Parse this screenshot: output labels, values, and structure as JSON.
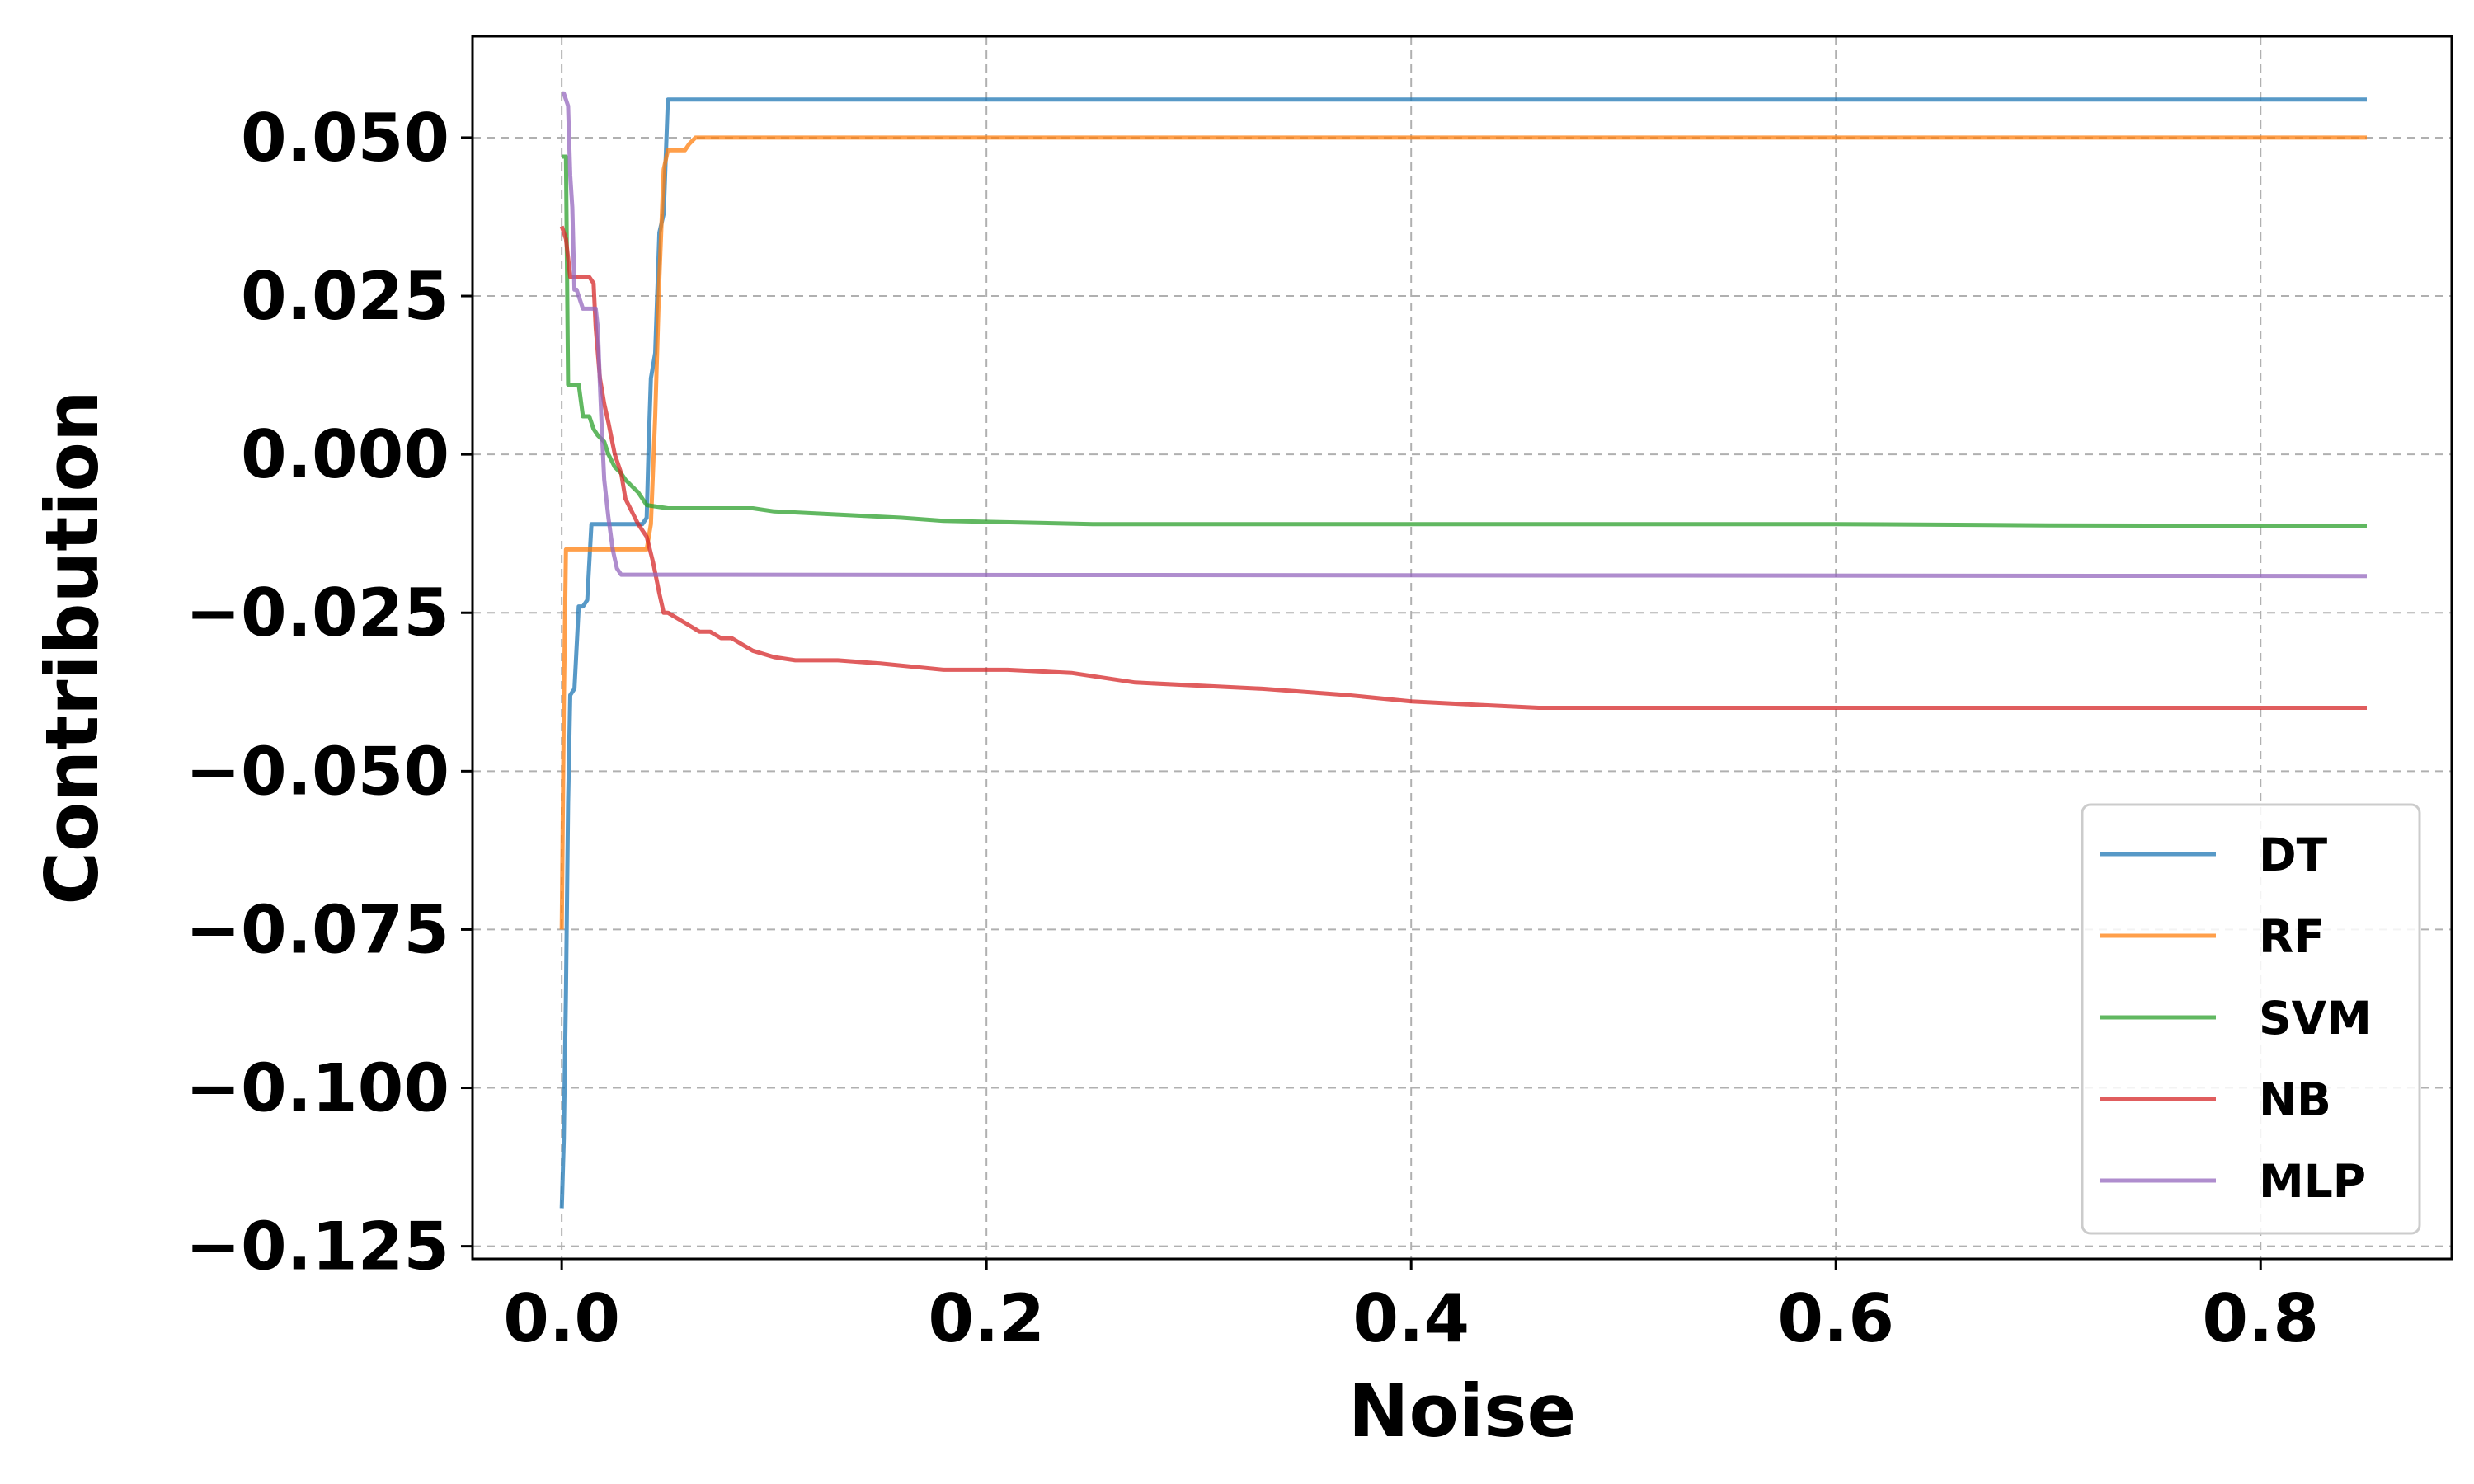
{
  "chart_data": {
    "type": "line",
    "title": "",
    "xlabel": "Noise",
    "ylabel": "Contribution",
    "xlim": [
      -0.042,
      0.89
    ],
    "ylim": [
      -0.127,
      0.066
    ],
    "xticks": [
      0.0,
      0.2,
      0.4,
      0.6,
      0.8
    ],
    "xtick_labels": [
      "0.0",
      "0.2",
      "0.4",
      "0.6",
      "0.8"
    ],
    "yticks": [
      0.05,
      0.025,
      0.0,
      -0.025,
      -0.05,
      -0.075,
      -0.1,
      -0.125
    ],
    "ytick_labels": [
      "0.050",
      "0.025",
      "0.000",
      "−0.025",
      "−0.050",
      "−0.075",
      "−0.100",
      "−0.125"
    ],
    "grid": true,
    "legend_position": "bottom-right",
    "series": [
      {
        "name": "DT",
        "color": "#1f77b4",
        "x": [
          0.0,
          0.001,
          0.002,
          0.003,
          0.004,
          0.006,
          0.008,
          0.01,
          0.012,
          0.014,
          0.016,
          0.018,
          0.02,
          0.025,
          0.03,
          0.035,
          0.038,
          0.04,
          0.041,
          0.042,
          0.044,
          0.046,
          0.048,
          0.05,
          0.85
        ],
        "y": [
          -0.119,
          -0.108,
          -0.085,
          -0.055,
          -0.038,
          -0.037,
          -0.024,
          -0.024,
          -0.023,
          -0.011,
          -0.011,
          -0.011,
          -0.011,
          -0.011,
          -0.011,
          -0.011,
          -0.011,
          -0.01,
          0.002,
          0.012,
          0.016,
          0.035,
          0.038,
          0.056,
          0.056
        ]
      },
      {
        "name": "RF",
        "color": "#ff7f0e",
        "x": [
          0.0,
          0.001,
          0.002,
          0.003,
          0.005,
          0.01,
          0.02,
          0.03,
          0.04,
          0.042,
          0.044,
          0.046,
          0.048,
          0.05,
          0.052,
          0.056,
          0.058,
          0.06,
          0.063,
          0.07,
          0.85
        ],
        "y": [
          -0.075,
          -0.04,
          -0.015,
          -0.015,
          -0.015,
          -0.015,
          -0.015,
          -0.015,
          -0.015,
          -0.011,
          0.006,
          0.028,
          0.045,
          0.048,
          0.048,
          0.048,
          0.048,
          0.049,
          0.05,
          0.05,
          0.05
        ]
      },
      {
        "name": "SVM",
        "color": "#2ca02c",
        "x": [
          0.0,
          0.001,
          0.002,
          0.003,
          0.004,
          0.005,
          0.008,
          0.01,
          0.011,
          0.013,
          0.015,
          0.017,
          0.02,
          0.022,
          0.025,
          0.028,
          0.03,
          0.033,
          0.036,
          0.04,
          0.05,
          0.07,
          0.09,
          0.1,
          0.13,
          0.16,
          0.18,
          0.25,
          0.3,
          0.4,
          0.5,
          0.6,
          0.7,
          0.85
        ],
        "y": [
          0.047,
          0.047,
          0.047,
          0.011,
          0.011,
          0.011,
          0.011,
          0.006,
          0.006,
          0.006,
          0.004,
          0.003,
          0.002,
          0.0,
          -0.002,
          -0.003,
          -0.004,
          -0.005,
          -0.006,
          -0.008,
          -0.0085,
          -0.0085,
          -0.0085,
          -0.009,
          -0.0095,
          -0.01,
          -0.0105,
          -0.011,
          -0.011,
          -0.011,
          -0.011,
          -0.011,
          -0.0112,
          -0.0113
        ]
      },
      {
        "name": "NB",
        "color": "#d62728",
        "x": [
          0.0,
          0.002,
          0.004,
          0.006,
          0.01,
          0.013,
          0.015,
          0.016,
          0.018,
          0.02,
          0.022,
          0.025,
          0.028,
          0.03,
          0.033,
          0.036,
          0.04,
          0.043,
          0.046,
          0.048,
          0.05,
          0.055,
          0.06,
          0.065,
          0.07,
          0.075,
          0.08,
          0.085,
          0.09,
          0.1,
          0.11,
          0.13,
          0.15,
          0.18,
          0.21,
          0.24,
          0.27,
          0.33,
          0.37,
          0.4,
          0.43,
          0.46,
          0.6,
          0.85
        ],
        "y": [
          0.036,
          0.034,
          0.028,
          0.028,
          0.028,
          0.028,
          0.027,
          0.02,
          0.012,
          0.008,
          0.005,
          0.0,
          -0.003,
          -0.007,
          -0.009,
          -0.011,
          -0.013,
          -0.017,
          -0.022,
          -0.025,
          -0.025,
          -0.026,
          -0.027,
          -0.028,
          -0.028,
          -0.029,
          -0.029,
          -0.03,
          -0.031,
          -0.032,
          -0.0325,
          -0.0325,
          -0.033,
          -0.034,
          -0.034,
          -0.0345,
          -0.036,
          -0.037,
          -0.038,
          -0.039,
          -0.0395,
          -0.04,
          -0.04,
          -0.04
        ]
      },
      {
        "name": "MLP",
        "color": "#9467bd",
        "x": [
          0.0,
          0.001,
          0.002,
          0.003,
          0.004,
          0.005,
          0.006,
          0.007,
          0.009,
          0.01,
          0.012,
          0.014,
          0.016,
          0.017,
          0.018,
          0.019,
          0.02,
          0.022,
          0.024,
          0.026,
          0.028,
          0.03,
          0.05,
          0.85
        ],
        "y": [
          0.057,
          0.057,
          0.056,
          0.055,
          0.044,
          0.039,
          0.026,
          0.026,
          0.024,
          0.023,
          0.023,
          0.023,
          0.023,
          0.02,
          0.011,
          0.003,
          -0.004,
          -0.01,
          -0.015,
          -0.018,
          -0.019,
          -0.019,
          -0.019,
          -0.0192
        ]
      }
    ]
  }
}
